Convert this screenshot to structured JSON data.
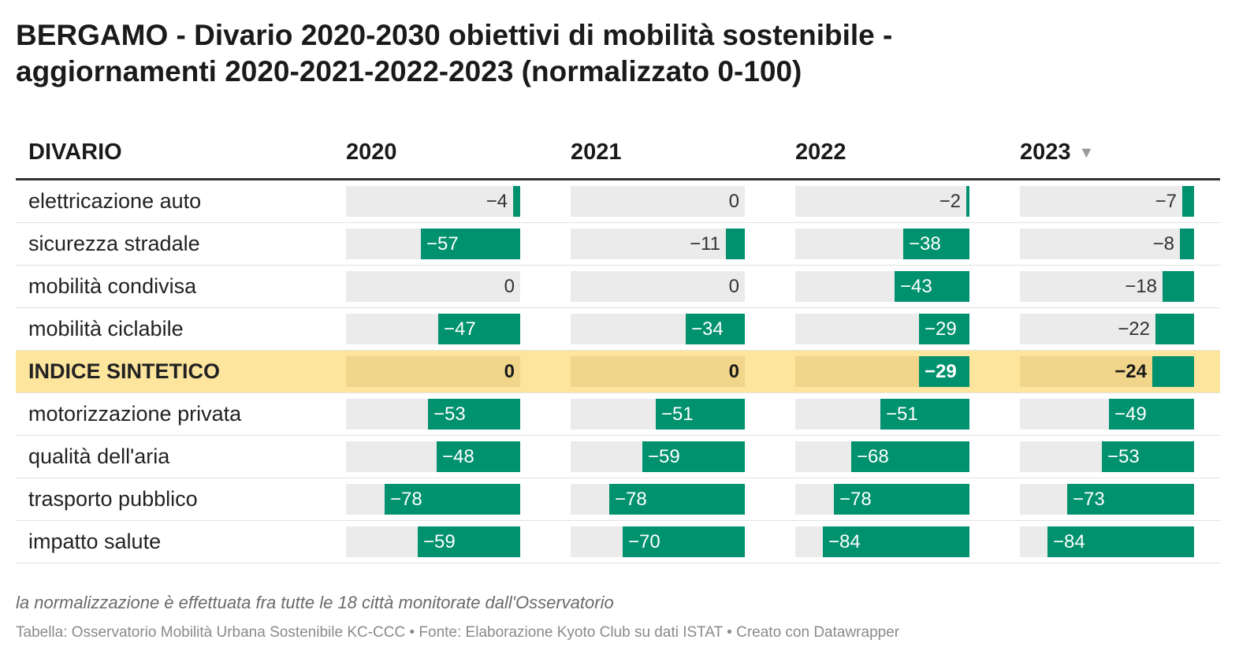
{
  "title_line1": "BERGAMO - Divario 2020-2030 obiettivi di mobilità sostenibile -",
  "title_line2": "aggiornamenti 2020-2021-2022-2023 (normalizzato 0-100)",
  "header": {
    "divario": "DIVARIO",
    "years": [
      "2020",
      "2021",
      "2022",
      "2023"
    ],
    "sort_glyph": "▼"
  },
  "chart_data": {
    "type": "table",
    "columns": [
      "2020",
      "2021",
      "2022",
      "2023"
    ],
    "value_range": [
      -100,
      0
    ],
    "bar_color": "#00916e",
    "highlight_color": "#fde59d",
    "sorted_by": "2023",
    "rows": [
      {
        "label": "elettricazione auto",
        "values": [
          -4,
          0,
          -2,
          -7
        ],
        "highlight": false
      },
      {
        "label": "sicurezza stradale",
        "values": [
          -57,
          -11,
          -38,
          -8
        ],
        "highlight": false
      },
      {
        "label": "mobilità condivisa",
        "values": [
          0,
          0,
          -43,
          -18
        ],
        "highlight": false
      },
      {
        "label": "mobilità ciclabile",
        "values": [
          -47,
          -34,
          -29,
          -22
        ],
        "highlight": false
      },
      {
        "label": "INDICE SINTETICO",
        "values": [
          0,
          0,
          -29,
          -24
        ],
        "highlight": true
      },
      {
        "label": "motorizzazione privata",
        "values": [
          -53,
          -51,
          -51,
          -49
        ],
        "highlight": false
      },
      {
        "label": "qualità dell'aria",
        "values": [
          -48,
          -59,
          -68,
          -53
        ],
        "highlight": false
      },
      {
        "label": "trasporto pubblico",
        "values": [
          -78,
          -78,
          -78,
          -73
        ],
        "highlight": false
      },
      {
        "label": "impatto salute",
        "values": [
          -59,
          -70,
          -84,
          -84
        ],
        "highlight": false
      }
    ]
  },
  "notes": "la normalizzazione è effettuata fra tutte le 18 città monitorate dall'Osservatorio",
  "footer": "Tabella: Osservatorio Mobilità Urbana Sostenibile KC-CCC • Fonte: Elaborazione Kyoto Club su dati ISTAT • Creato con Datawrapper"
}
